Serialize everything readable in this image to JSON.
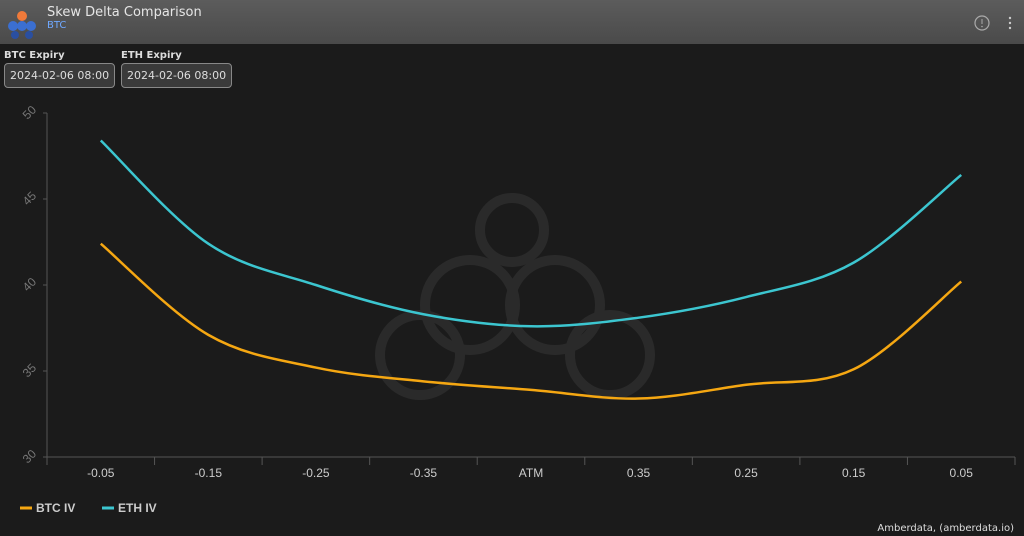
{
  "header": {
    "title": "Skew Delta Comparison",
    "subtitle": "BTC"
  },
  "controls": [
    {
      "label": "BTC Expiry",
      "value": "2024-02-06 08:00"
    },
    {
      "label": "ETH Expiry",
      "value": "2024-02-06 08:00"
    }
  ],
  "chart_data": {
    "type": "line",
    "categories": [
      "-0.05",
      "-0.15",
      "-0.25",
      "-0.35",
      "ATM",
      "0.35",
      "0.25",
      "0.15",
      "0.05"
    ],
    "series": [
      {
        "name": "BTC IV",
        "color": "#f5a712",
        "values": [
          42.4,
          37.1,
          35.2,
          34.4,
          33.9,
          33.4,
          34.2,
          35.1,
          40.2
        ]
      },
      {
        "name": "ETH IV",
        "color": "#3cc6d0",
        "values": [
          48.4,
          42.4,
          40.0,
          38.3,
          37.6,
          38.1,
          39.3,
          41.3,
          46.4
        ]
      }
    ],
    "ylim": [
      30,
      50
    ],
    "yticks": [
      30,
      35,
      40,
      45,
      50
    ]
  },
  "credit": "Amberdata, (amberdata.io)"
}
